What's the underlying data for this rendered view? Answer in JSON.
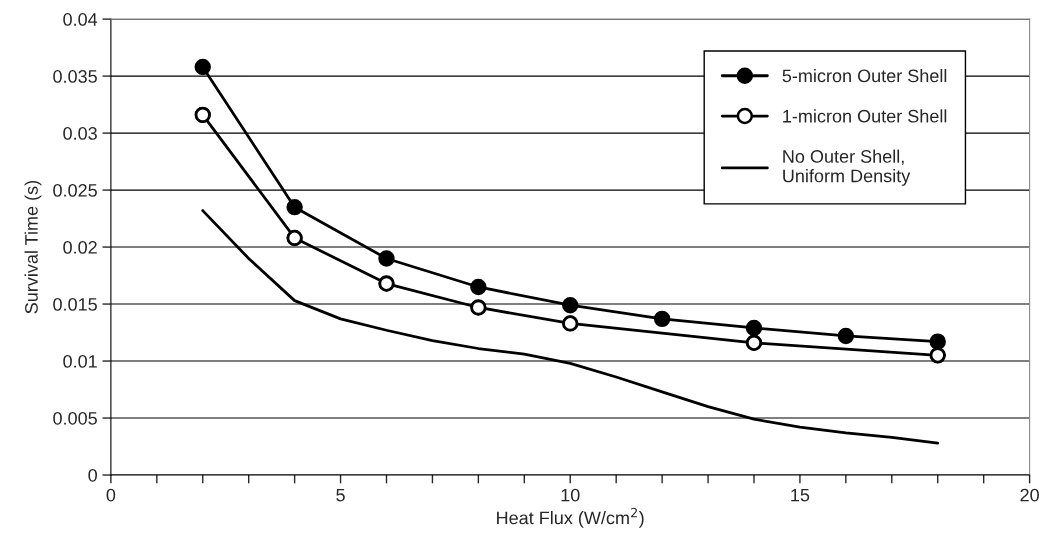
{
  "chart_data": {
    "type": "line",
    "xlabel": "Heat Flux (W/cm$^{2}$)",
    "ylabel": "Survival Time (s)",
    "xlim": [
      0,
      20
    ],
    "ylim": [
      0,
      0.04
    ],
    "xticks": [
      0,
      {
        "value": 1,
        "label": null
      },
      {
        "value": 2,
        "label": null
      },
      {
        "value": 3,
        "label": null
      },
      {
        "value": 4,
        "label": null
      },
      5,
      {
        "value": 6,
        "label": null
      },
      {
        "value": 7,
        "label": null
      },
      {
        "value": 8,
        "label": null
      },
      {
        "value": 9,
        "label": null
      },
      10,
      {
        "value": 11,
        "label": null
      },
      {
        "value": 12,
        "label": null
      },
      {
        "value": 13,
        "label": null
      },
      {
        "value": 14,
        "label": null
      },
      15,
      {
        "value": 16,
        "label": null
      },
      {
        "value": 17,
        "label": null
      },
      {
        "value": 18,
        "label": null
      },
      {
        "value": 19,
        "label": null
      },
      20
    ],
    "yticks": [
      0,
      0.005,
      0.01,
      0.015,
      0.02,
      0.025,
      0.03,
      0.035,
      0.04
    ],
    "grid": "y",
    "legend": "top right",
    "series": [
      {
        "name": "5-micron Outer Shell",
        "color": "#000000",
        "marker": "circle",
        "x": [
          2,
          4,
          6,
          8,
          10,
          12,
          14,
          16,
          18
        ],
        "values": [
          0.0358,
          0.0235,
          0.019,
          0.0165,
          0.0149,
          0.0137,
          0.0129,
          0.0122,
          0.0117
        ]
      },
      {
        "name": "1-micron Outer Shell",
        "color": "#000000",
        "marker": "circle",
        "colors": [
          "#ffffff",
          "#ffffff",
          "#ffffff",
          "#ffffff",
          "#ffffff",
          "#ffffff",
          "#ffffff"
        ],
        "x": [
          2,
          4,
          6,
          8,
          10,
          14,
          18
        ],
        "values": [
          0.0316,
          0.0208,
          0.0168,
          0.0147,
          0.0133,
          0.0116,
          0.0105
        ]
      },
      {
        "name": "No Outer Shell,\nUniform Density",
        "color": "#000000",
        "marker": "none",
        "x": [
          2,
          3,
          4,
          5,
          6,
          7,
          8,
          9,
          10,
          11,
          12,
          13,
          14,
          15,
          16,
          17,
          18
        ],
        "values": [
          0.0232,
          0.019,
          0.0153,
          0.0137,
          0.0127,
          0.0118,
          0.0111,
          0.0106,
          0.0098,
          0.0086,
          0.0073,
          0.006,
          0.0049,
          0.0042,
          0.0037,
          0.0033,
          0.0028
        ]
      }
    ]
  }
}
